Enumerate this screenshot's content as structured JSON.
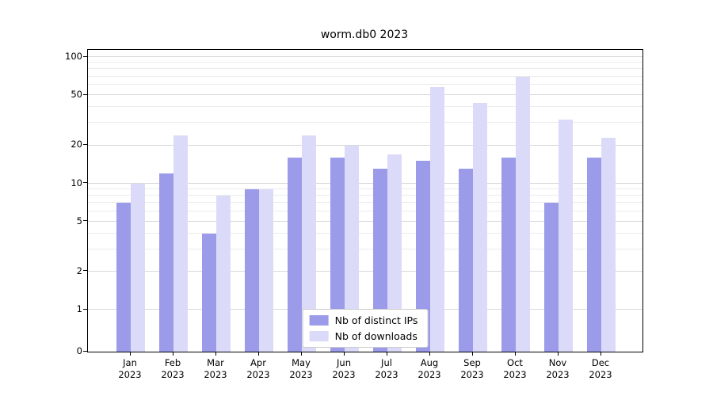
{
  "chart_data": {
    "type": "bar",
    "title": "worm.db0 2023",
    "categories": [
      {
        "month": "Jan",
        "year": "2023"
      },
      {
        "month": "Feb",
        "year": "2023"
      },
      {
        "month": "Mar",
        "year": "2023"
      },
      {
        "month": "Apr",
        "year": "2023"
      },
      {
        "month": "May",
        "year": "2023"
      },
      {
        "month": "Jun",
        "year": "2023"
      },
      {
        "month": "Jul",
        "year": "2023"
      },
      {
        "month": "Aug",
        "year": "2023"
      },
      {
        "month": "Sep",
        "year": "2023"
      },
      {
        "month": "Oct",
        "year": "2023"
      },
      {
        "month": "Nov",
        "year": "2023"
      },
      {
        "month": "Dec",
        "year": "2023"
      }
    ],
    "series": [
      {
        "name": "Nb of distinct IPs",
        "color": "#9b9bea",
        "values": [
          7,
          12,
          4,
          9,
          16,
          16,
          13,
          15,
          13,
          16,
          7,
          16
        ]
      },
      {
        "name": "Nb of downloads",
        "color": "#dbdbf9",
        "values": [
          10,
          24,
          8,
          9,
          24,
          20,
          17,
          58,
          43,
          70,
          32,
          23
        ]
      }
    ],
    "yscale": "symlog",
    "ylim": [
      0,
      100
    ],
    "yticks": [
      0,
      1,
      2,
      5,
      10,
      20,
      50,
      100
    ],
    "minor_gridlines": [
      3,
      4,
      6,
      7,
      8,
      9,
      30,
      40,
      60,
      70,
      80,
      90
    ],
    "grid": true,
    "legend_position": "lower center"
  }
}
